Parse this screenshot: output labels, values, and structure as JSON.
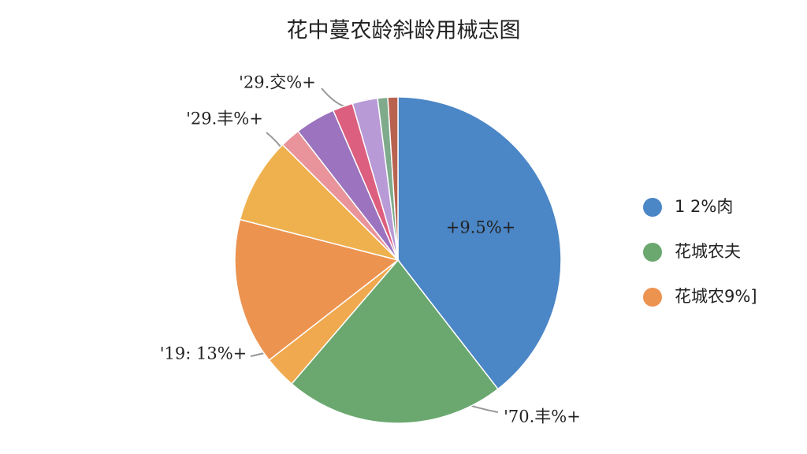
{
  "chart_data": {
    "type": "pie",
    "title": "花中蔓农龄斜龄用械志图",
    "categories": [
      "1 2%肉",
      "花城农夫",
      null,
      "花城农9%]",
      null,
      null,
      null,
      null,
      null,
      null,
      null
    ],
    "values": [
      39.5,
      21.8,
      3.2,
      14.5,
      8.5,
      2,
      4,
      2,
      2.5,
      1,
      1
    ],
    "colors": [
      "#4b86c6",
      "#6aa86f",
      "#f0a94f",
      "#ec9350",
      "#efb14e",
      "#e8949a",
      "#9b73bf",
      "#dd5f7f",
      "#b79ad6",
      "#7fab8c",
      "#b8624f"
    ],
    "annotations": [
      "+9.5%+",
      "'70.丰%+",
      "'19: 13%+",
      "'29.丰%+",
      "'29.交%+"
    ],
    "legend": "right"
  }
}
